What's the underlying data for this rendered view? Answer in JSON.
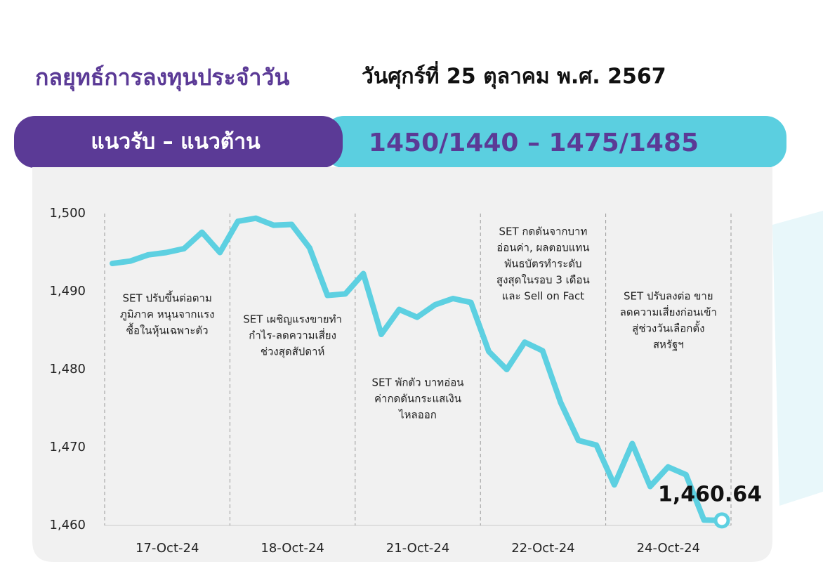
{
  "header": {
    "title": "กลยุทธ์การลงทุนประจำวัน",
    "date": "วันศุกร์ที่ 25 ตุลาคม พ.ศ. 2567",
    "level_label": "แนวรับ – แนวต้าน",
    "levels": "1450/1440 – 1475/1485"
  },
  "chart_data": {
    "type": "line",
    "color": "#5dd0e1",
    "day_labels": [
      "17-Oct-24",
      "18-Oct-24",
      "21-Oct-24",
      "22-Oct-24",
      "24-Oct-24"
    ],
    "values": [
      1493.6,
      1493.9,
      1494.7,
      1495.0,
      1495.5,
      1497.6,
      1495.0,
      1499.0,
      1499.4,
      1498.5,
      1498.6,
      1495.6,
      1489.5,
      1489.7,
      1492.3,
      1484.5,
      1487.7,
      1486.7,
      1488.3,
      1489.1,
      1488.6,
      1482.3,
      1480.0,
      1483.5,
      1482.4,
      1475.8,
      1470.9,
      1470.3,
      1465.2,
      1470.5,
      1465.0,
      1467.5,
      1466.5,
      1460.7,
      1460.64
    ],
    "value_labels": [
      null,
      null,
      null,
      null,
      null,
      null,
      null,
      null,
      null,
      null,
      null,
      null,
      null,
      null,
      null,
      null,
      null,
      null,
      null,
      null,
      null,
      null,
      null,
      null,
      null,
      null,
      null,
      null,
      null,
      null,
      null,
      null,
      null,
      null,
      "1,460.64"
    ],
    "ylim": [
      1460,
      1500
    ],
    "yticks": [
      {
        "value": 1460,
        "label": "1,460"
      },
      {
        "value": 1470,
        "label": "1,470"
      },
      {
        "value": 1480,
        "label": "1,480"
      },
      {
        "value": 1490,
        "label": "1,490"
      },
      {
        "value": 1500,
        "label": "1,500"
      }
    ],
    "annotations": [
      [
        "SET ปรับขึ้นต่อตาม",
        "ภูมิภาค หนุนจากแรง",
        "ซื้อในหุ้นเฉพาะตัว"
      ],
      [
        "SET เผชิญแรงขายทำ",
        "กำไร-ลดความเสี่ยง",
        "ช่วงสุดสัปดาห์"
      ],
      [
        "SET พักตัว บาทอ่อน",
        "ค่ากดดันกระแสเงิน",
        "ไหลออก"
      ],
      [
        "SET กดดันจากบาท",
        "อ่อนค่า, ผลตอบแทน",
        "พันธบัตรทำระดับ",
        "สูงสุดในรอบ 3 เดือน",
        "และ Sell on Fact"
      ],
      [
        "SET ปรับลงต่อ ขาย",
        "ลดความเสี่ยงก่อนเข้า",
        "สู่ช่วงวันเลือกตั้ง",
        "สหรัฐฯ"
      ]
    ]
  }
}
